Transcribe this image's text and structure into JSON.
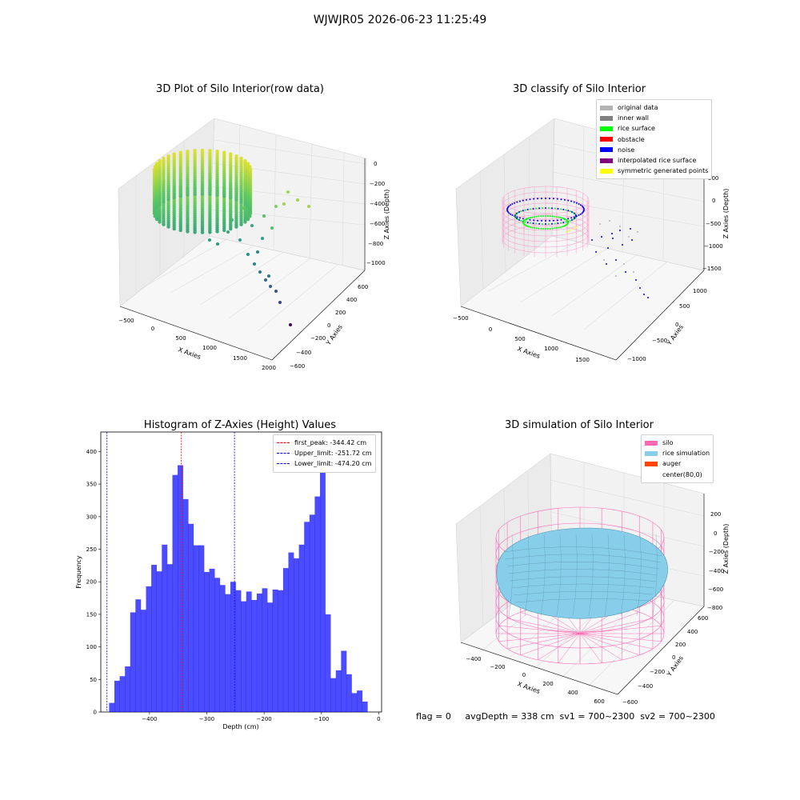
{
  "suptitle": "WJWJR05 2026-06-23 11:25:49",
  "panels": {
    "raw": {
      "title": "3D Plot of Silo Interior(row data)",
      "xlabel": "X Axies",
      "ylabel": "Y Axies",
      "zlabel": "Z Axies (Depth)",
      "xticks": [
        "−500",
        "0",
        "500",
        "1000",
        "1500",
        "2000"
      ],
      "yticks": [
        "−600",
        "−400",
        "−200",
        "0",
        "200",
        "400",
        "600"
      ],
      "zticks": [
        "0",
        "−200",
        "−400",
        "−600",
        "−800",
        "−1000"
      ]
    },
    "classify": {
      "title": "3D classify of Silo Interior",
      "xlabel": "X Axies",
      "ylabel": "Y Axies",
      "zlabel": "Z Axies (Depth)",
      "xticks": [
        "−500",
        "0",
        "500",
        "1000",
        "1500"
      ],
      "yticks": [
        "−1000",
        "−500",
        "0",
        "500",
        "1000"
      ],
      "zticks": [
        "500",
        "0",
        "−500",
        "−1000",
        "−1500"
      ],
      "legend": [
        {
          "label": "original data",
          "color": "#b3b3b3"
        },
        {
          "label": "inner wall",
          "color": "#808080"
        },
        {
          "label": "rice surface",
          "color": "#00ff00"
        },
        {
          "label": "obstacle",
          "color": "#ff0000"
        },
        {
          "label": "noise",
          "color": "#0000ff"
        },
        {
          "label": "interpolated rice surface",
          "color": "#800080"
        },
        {
          "label": "symmetric generated points",
          "color": "#ffff00"
        }
      ]
    },
    "simulation": {
      "title": "3D simulation of Silo Interior",
      "xlabel": "X Axies",
      "ylabel": "Y Axies",
      "zlabel": "Z Axies (Depth)",
      "xticks": [
        "−400",
        "−200",
        "0",
        "200",
        "400",
        "600"
      ],
      "yticks": [
        "−600",
        "−400",
        "−200",
        "0",
        "200",
        "400",
        "600"
      ],
      "zticks": [
        "200",
        "0",
        "−200",
        "−400",
        "−600",
        "−800"
      ],
      "legend": [
        {
          "label": "silo",
          "color": "#ff69b4"
        },
        {
          "label": "rice simulation",
          "color": "#87ceeb"
        },
        {
          "label": "auger",
          "color": "#ff4500"
        },
        {
          "label": "center(80,0)",
          "color": "#ffffff"
        }
      ]
    }
  },
  "footer": "flag = 0     avgDepth = 338 cm  sv1 = 700~2300  sv2 = 700~2300",
  "chart_data": {
    "type": "bar",
    "title": "Histogram of Z-Axies (Height) Values",
    "xlabel": "Depth (cm)",
    "ylabel": "Frequency",
    "xlim": [
      -485,
      5
    ],
    "ylim": [
      0,
      430
    ],
    "bin_start": -470.5,
    "bin_width": 9.2,
    "values": [
      14,
      48,
      55,
      70,
      153,
      173,
      157,
      193,
      226,
      216,
      257,
      227,
      364,
      379,
      327,
      289,
      256,
      256,
      215,
      220,
      206,
      195,
      181,
      200,
      187,
      170,
      185,
      172,
      182,
      190,
      168,
      188,
      187,
      221,
      245,
      236,
      257,
      292,
      303,
      331,
      400,
      150,
      52,
      64,
      94,
      58,
      29,
      33,
      16
    ],
    "xticks": [
      -400,
      -300,
      -200,
      -100,
      0
    ],
    "yticks": [
      0,
      50,
      100,
      150,
      200,
      250,
      300,
      350,
      400
    ],
    "color": "#0000ff",
    "vlines": [
      {
        "label": "first_peak: -344.42 cm",
        "x": -344.42,
        "color": "#ff0000"
      },
      {
        "label": "Upper_limit: -251.72 cm",
        "x": -251.72,
        "color": "#0000ff"
      },
      {
        "label": "Lower_limit: -474.20 cm",
        "x": -474.2,
        "color": "#0000ff"
      }
    ]
  }
}
